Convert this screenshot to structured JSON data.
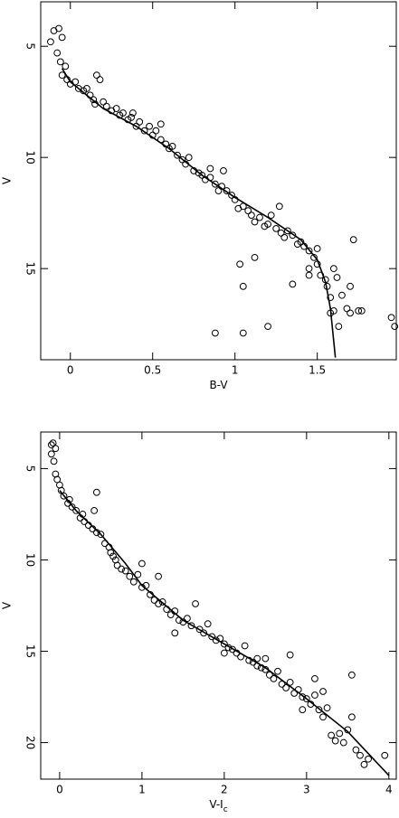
{
  "chart_data": [
    {
      "type": "scatter",
      "xlabel": [
        "B-V"
      ],
      "ylabel": "V",
      "xlim": [
        -0.18,
        1.98
      ],
      "ylim": [
        3,
        19.1
      ],
      "invert_y": true,
      "xticks": [
        0,
        0.5,
        1,
        1.5
      ],
      "yticks": [
        5,
        10,
        15
      ],
      "series": [
        {
          "marker": "circle",
          "color": "#000000",
          "x": [
            -0.1,
            -0.07,
            -0.05,
            -0.12,
            -0.08,
            -0.06,
            -0.03,
            -0.05,
            -0.02,
            0,
            0.03,
            0.05,
            0.08,
            0.1,
            0.12,
            0.14,
            0.16,
            0.18,
            0.15,
            0.2,
            0.22,
            0.25,
            0.28,
            0.3,
            0.32,
            0.35,
            0.37,
            0.4,
            0.42,
            0.45,
            0.48,
            0.5,
            0.52,
            0.55,
            0.58,
            0.6,
            0.62,
            0.65,
            0.68,
            0.7,
            0.72,
            0.75,
            0.78,
            0.8,
            0.82,
            0.85,
            0.88,
            0.9,
            0.92,
            0.95,
            0.98,
            1.0,
            1.02,
            1.05,
            1.08,
            1.1,
            1.12,
            1.15,
            1.18,
            1.2,
            1.22,
            1.25,
            1.28,
            1.3,
            1.32,
            1.35,
            1.38,
            1.4,
            1.42,
            1.45,
            1.48,
            1.5,
            1.52,
            1.55,
            1.56,
            1.58,
            1.6,
            1.62,
            1.65,
            1.68,
            1.7,
            1.72,
            1.75,
            1.77,
            1.95,
            1.97,
            1.63,
            1.58,
            0.88,
            1.05,
            1.2,
            1.05,
            1.03,
            1.12,
            1.35,
            1.45,
            0.93,
            0.85,
            0.55,
            0.38,
            1.27,
            1.5,
            1.45,
            1.6,
            1.7
          ],
          "y": [
            4.3,
            4.2,
            4.6,
            4.8,
            5.3,
            5.7,
            5.9,
            6.3,
            6.5,
            6.7,
            6.6,
            6.9,
            7.0,
            6.9,
            7.2,
            7.4,
            6.3,
            6.5,
            7.6,
            7.5,
            7.7,
            7.9,
            7.8,
            8.1,
            8.0,
            8.3,
            8.2,
            8.6,
            8.4,
            8.8,
            8.6,
            9.0,
            8.8,
            9.2,
            9.4,
            9.6,
            9.5,
            9.9,
            10.1,
            10.3,
            10.0,
            10.6,
            10.7,
            10.8,
            11.0,
            10.9,
            11.2,
            11.5,
            11.3,
            11.5,
            11.7,
            11.9,
            12.3,
            12.2,
            12.4,
            12.6,
            12.9,
            12.7,
            13.1,
            13.0,
            12.6,
            13.2,
            13.4,
            13.6,
            13.3,
            13.5,
            13.9,
            13.8,
            14.0,
            14.2,
            14.5,
            14.8,
            15.3,
            15.5,
            15.8,
            16.3,
            16.9,
            15.4,
            16.2,
            16.8,
            17.0,
            13.7,
            16.9,
            16.9,
            17.2,
            17.6,
            17.6,
            17.0,
            17.9,
            17.9,
            17.6,
            15.8,
            14.8,
            14.5,
            15.7,
            15.3,
            10.6,
            10.5,
            8.5,
            8.0,
            12.2,
            14.1,
            15.0,
            15.0,
            15.8
          ]
        },
        {
          "marker": "line",
          "color": "#000000",
          "x": [
            -0.05,
            0,
            0.2,
            0.4,
            0.6,
            0.8,
            1.0,
            1.2,
            1.4,
            1.5,
            1.55,
            1.58,
            1.61
          ],
          "y": [
            6.0,
            6.6,
            7.8,
            8.6,
            9.6,
            10.8,
            11.8,
            12.7,
            13.7,
            14.6,
            15.6,
            16.8,
            19.0
          ]
        }
      ]
    },
    {
      "type": "scatter",
      "xlabel": [
        "V-I",
        "c"
      ],
      "ylabel": "V",
      "xlim": [
        -0.23,
        4.09
      ],
      "ylim": [
        3,
        22
      ],
      "invert_y": true,
      "xticks": [
        0,
        1,
        2,
        3,
        4
      ],
      "yticks": [
        5,
        10,
        15,
        20
      ],
      "series": [
        {
          "marker": "circle",
          "color": "#000000",
          "x": [
            -0.1,
            -0.08,
            -0.05,
            -0.1,
            -0.07,
            -0.05,
            -0.03,
            0,
            0.02,
            0.05,
            0.1,
            0.12,
            0.15,
            0.2,
            0.25,
            0.28,
            0.3,
            0.35,
            0.4,
            0.42,
            0.45,
            0.5,
            0.55,
            0.6,
            0.62,
            0.65,
            0.68,
            0.7,
            0.75,
            0.8,
            0.85,
            0.9,
            0.95,
            1.0,
            1.05,
            1.1,
            1.15,
            1.2,
            1.25,
            1.3,
            1.35,
            1.4,
            1.45,
            1.5,
            1.55,
            1.6,
            1.65,
            1.7,
            1.75,
            1.8,
            1.85,
            1.9,
            1.95,
            2.0,
            2.05,
            2.1,
            2.15,
            2.2,
            2.25,
            2.3,
            2.35,
            2.4,
            2.45,
            2.5,
            2.55,
            2.6,
            2.65,
            2.7,
            2.75,
            2.8,
            2.85,
            2.9,
            2.95,
            3.0,
            3.05,
            3.1,
            3.15,
            3.2,
            3.25,
            3.3,
            3.35,
            3.4,
            3.45,
            3.5,
            3.55,
            3.6,
            3.65,
            3.7,
            3.75,
            3.95,
            2.8,
            3.1,
            3.55,
            1.0,
            1.2,
            2.5,
            2.4,
            0.45,
            1.4,
            2.0,
            3.2,
            2.95
          ],
          "y": [
            3.7,
            3.6,
            3.9,
            4.2,
            4.6,
            5.3,
            5.6,
            5.9,
            6.2,
            6.5,
            6.9,
            6.7,
            7.1,
            7.3,
            7.7,
            7.5,
            7.9,
            8.1,
            8.3,
            7.3,
            8.5,
            8.6,
            9.1,
            9.3,
            9.6,
            9.8,
            10.0,
            10.3,
            10.5,
            10.6,
            10.9,
            11.2,
            10.8,
            11.5,
            11.4,
            11.9,
            12.2,
            12.4,
            12.3,
            12.7,
            13.0,
            12.8,
            13.3,
            13.4,
            13.2,
            13.6,
            12.4,
            13.8,
            14.0,
            13.5,
            14.2,
            14.4,
            14.3,
            14.6,
            14.8,
            14.9,
            15.1,
            15.3,
            14.7,
            15.5,
            15.6,
            15.4,
            15.9,
            16.0,
            16.3,
            16.5,
            16.1,
            16.8,
            17.0,
            16.7,
            17.3,
            17.1,
            17.5,
            17.6,
            17.9,
            17.4,
            18.2,
            18.6,
            18.1,
            19.6,
            19.9,
            19.5,
            20.0,
            19.3,
            18.6,
            20.4,
            20.7,
            21.2,
            20.9,
            20.7,
            15.2,
            16.5,
            16.3,
            10.2,
            10.9,
            15.4,
            15.8,
            6.3,
            14.0,
            15.1,
            17.2,
            18.2
          ]
        },
        {
          "marker": "line",
          "color": "#000000",
          "x": [
            0,
            0.2,
            0.5,
            0.8,
            1,
            1.5,
            2,
            2.5,
            3,
            3.5,
            4
          ],
          "y": [
            6.2,
            7.3,
            8.6,
            10.2,
            11.4,
            13.3,
            14.6,
            15.9,
            17.6,
            19.4,
            21.8
          ]
        }
      ]
    }
  ]
}
